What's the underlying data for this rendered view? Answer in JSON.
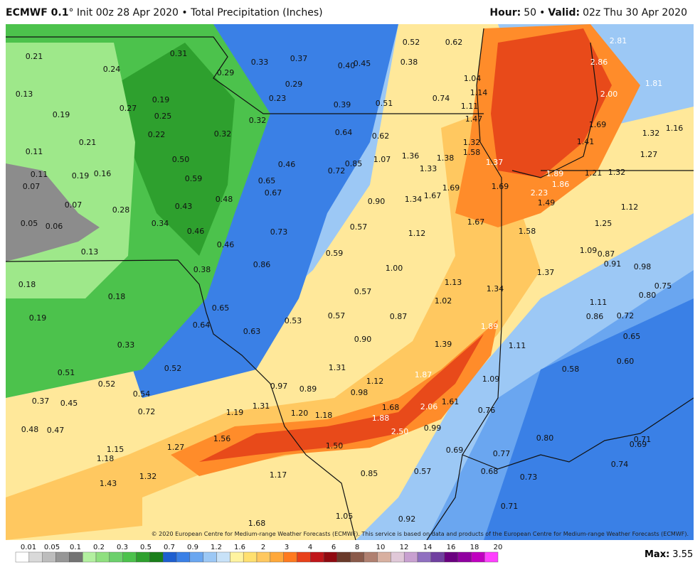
{
  "header": {
    "model": "ECMWF 0.1",
    "init": "° Init 00z 28 Apr 2020 • Total Precipitation (Inches)",
    "hour_label": "Hour:",
    "hour": "50",
    "separator": "•",
    "valid_label": "Valid:",
    "valid": "02z Thu 30 Apr 2020"
  },
  "map": {
    "labels": [
      "0.21",
      "0.24",
      "0.31",
      "0.29",
      "0.33",
      "0.37",
      "0.40",
      "0.45",
      "0.38",
      "0.52",
      "0.62",
      "0.13",
      "0.27",
      "0.19",
      "0.29",
      "0.23",
      "0.39",
      "0.51",
      "0.74",
      "1.04",
      "1.14",
      "1.11",
      "0.19",
      "0.25",
      "0.32",
      "0.64",
      "0.62",
      "1.47",
      "0.22",
      "0.32",
      "0.21",
      "0.11",
      "0.50",
      "0.46",
      "0.72",
      "0.85",
      "1.07",
      "1.36",
      "1.38",
      "1.33",
      "1.32",
      "1.58",
      "1.37",
      "0.11",
      "0.07",
      "0.19",
      "0.16",
      "0.59",
      "0.65",
      "0.67",
      "0.48",
      "0.90",
      "1.34",
      "1.67",
      "1.69",
      "1.69",
      "0.07",
      "0.28",
      "0.43",
      "0.05",
      "0.06",
      "0.34",
      "0.46",
      "0.73",
      "0.57",
      "1.12",
      "1.67",
      "1.58",
      "0.13",
      "0.46",
      "0.59",
      "0.38",
      "0.86",
      "1.00",
      "1.13",
      "1.34",
      "1.37",
      "0.18",
      "0.18",
      "0.57",
      "1.02",
      "0.65",
      "0.19",
      "0.53",
      "0.57",
      "0.87",
      "0.64",
      "0.63",
      "1.89",
      "0.90",
      "1.39",
      "1.11",
      "0.33",
      "0.51",
      "0.52",
      "1.31",
      "1.87",
      "1.09",
      "0.52",
      "0.54",
      "0.97",
      "0.89",
      "0.98",
      "1.12",
      "0.37",
      "0.45",
      "0.72",
      "1.19",
      "1.31",
      "1.20",
      "1.18",
      "1.68",
      "2.06",
      "1.61",
      "0.76",
      "1.88",
      "0.48",
      "0.47",
      "1.56",
      "2.50",
      "0.99",
      "1.15",
      "1.27",
      "1.50",
      "0.69",
      "0.77",
      "1.18",
      "0.85",
      "0.57",
      "0.68",
      "1.32",
      "1.17",
      "0.73",
      "1.43",
      "1.05",
      "0.92",
      "0.71",
      "1.68",
      "0.80",
      "2.81",
      "2.86",
      "1.81",
      "2.00",
      "1.69",
      "1.32",
      "1.16",
      "1.41",
      "1.27",
      "1.89",
      "1.86",
      "2.23",
      "1.21",
      "1.32",
      "1.49",
      "1.12",
      "1.25",
      "1.09",
      "0.87",
      "0.91",
      "0.98",
      "0.75",
      "0.80",
      "1.11",
      "0.86",
      "0.72",
      "0.65",
      "0.60",
      "0.58",
      "0.71",
      "0.69",
      "0.74"
    ]
  },
  "credit": "© 2020 European Centre for Medium-range Weather Forecasts (ECMWF). This service is based on data and products of the European Centre for Medium-range Weather Forecasts (ECMWF).",
  "colorbar": {
    "labels": [
      "0.01",
      "0.05",
      "0.1",
      "0.2",
      "0.3",
      "0.5",
      "0.7",
      "0.9",
      "1.2",
      "1.6",
      "2",
      "3",
      "4",
      "6",
      "8",
      "10",
      "12",
      "14",
      "16",
      "18",
      "20"
    ]
  },
  "max": {
    "label": "Max:",
    "value": "3.55"
  }
}
